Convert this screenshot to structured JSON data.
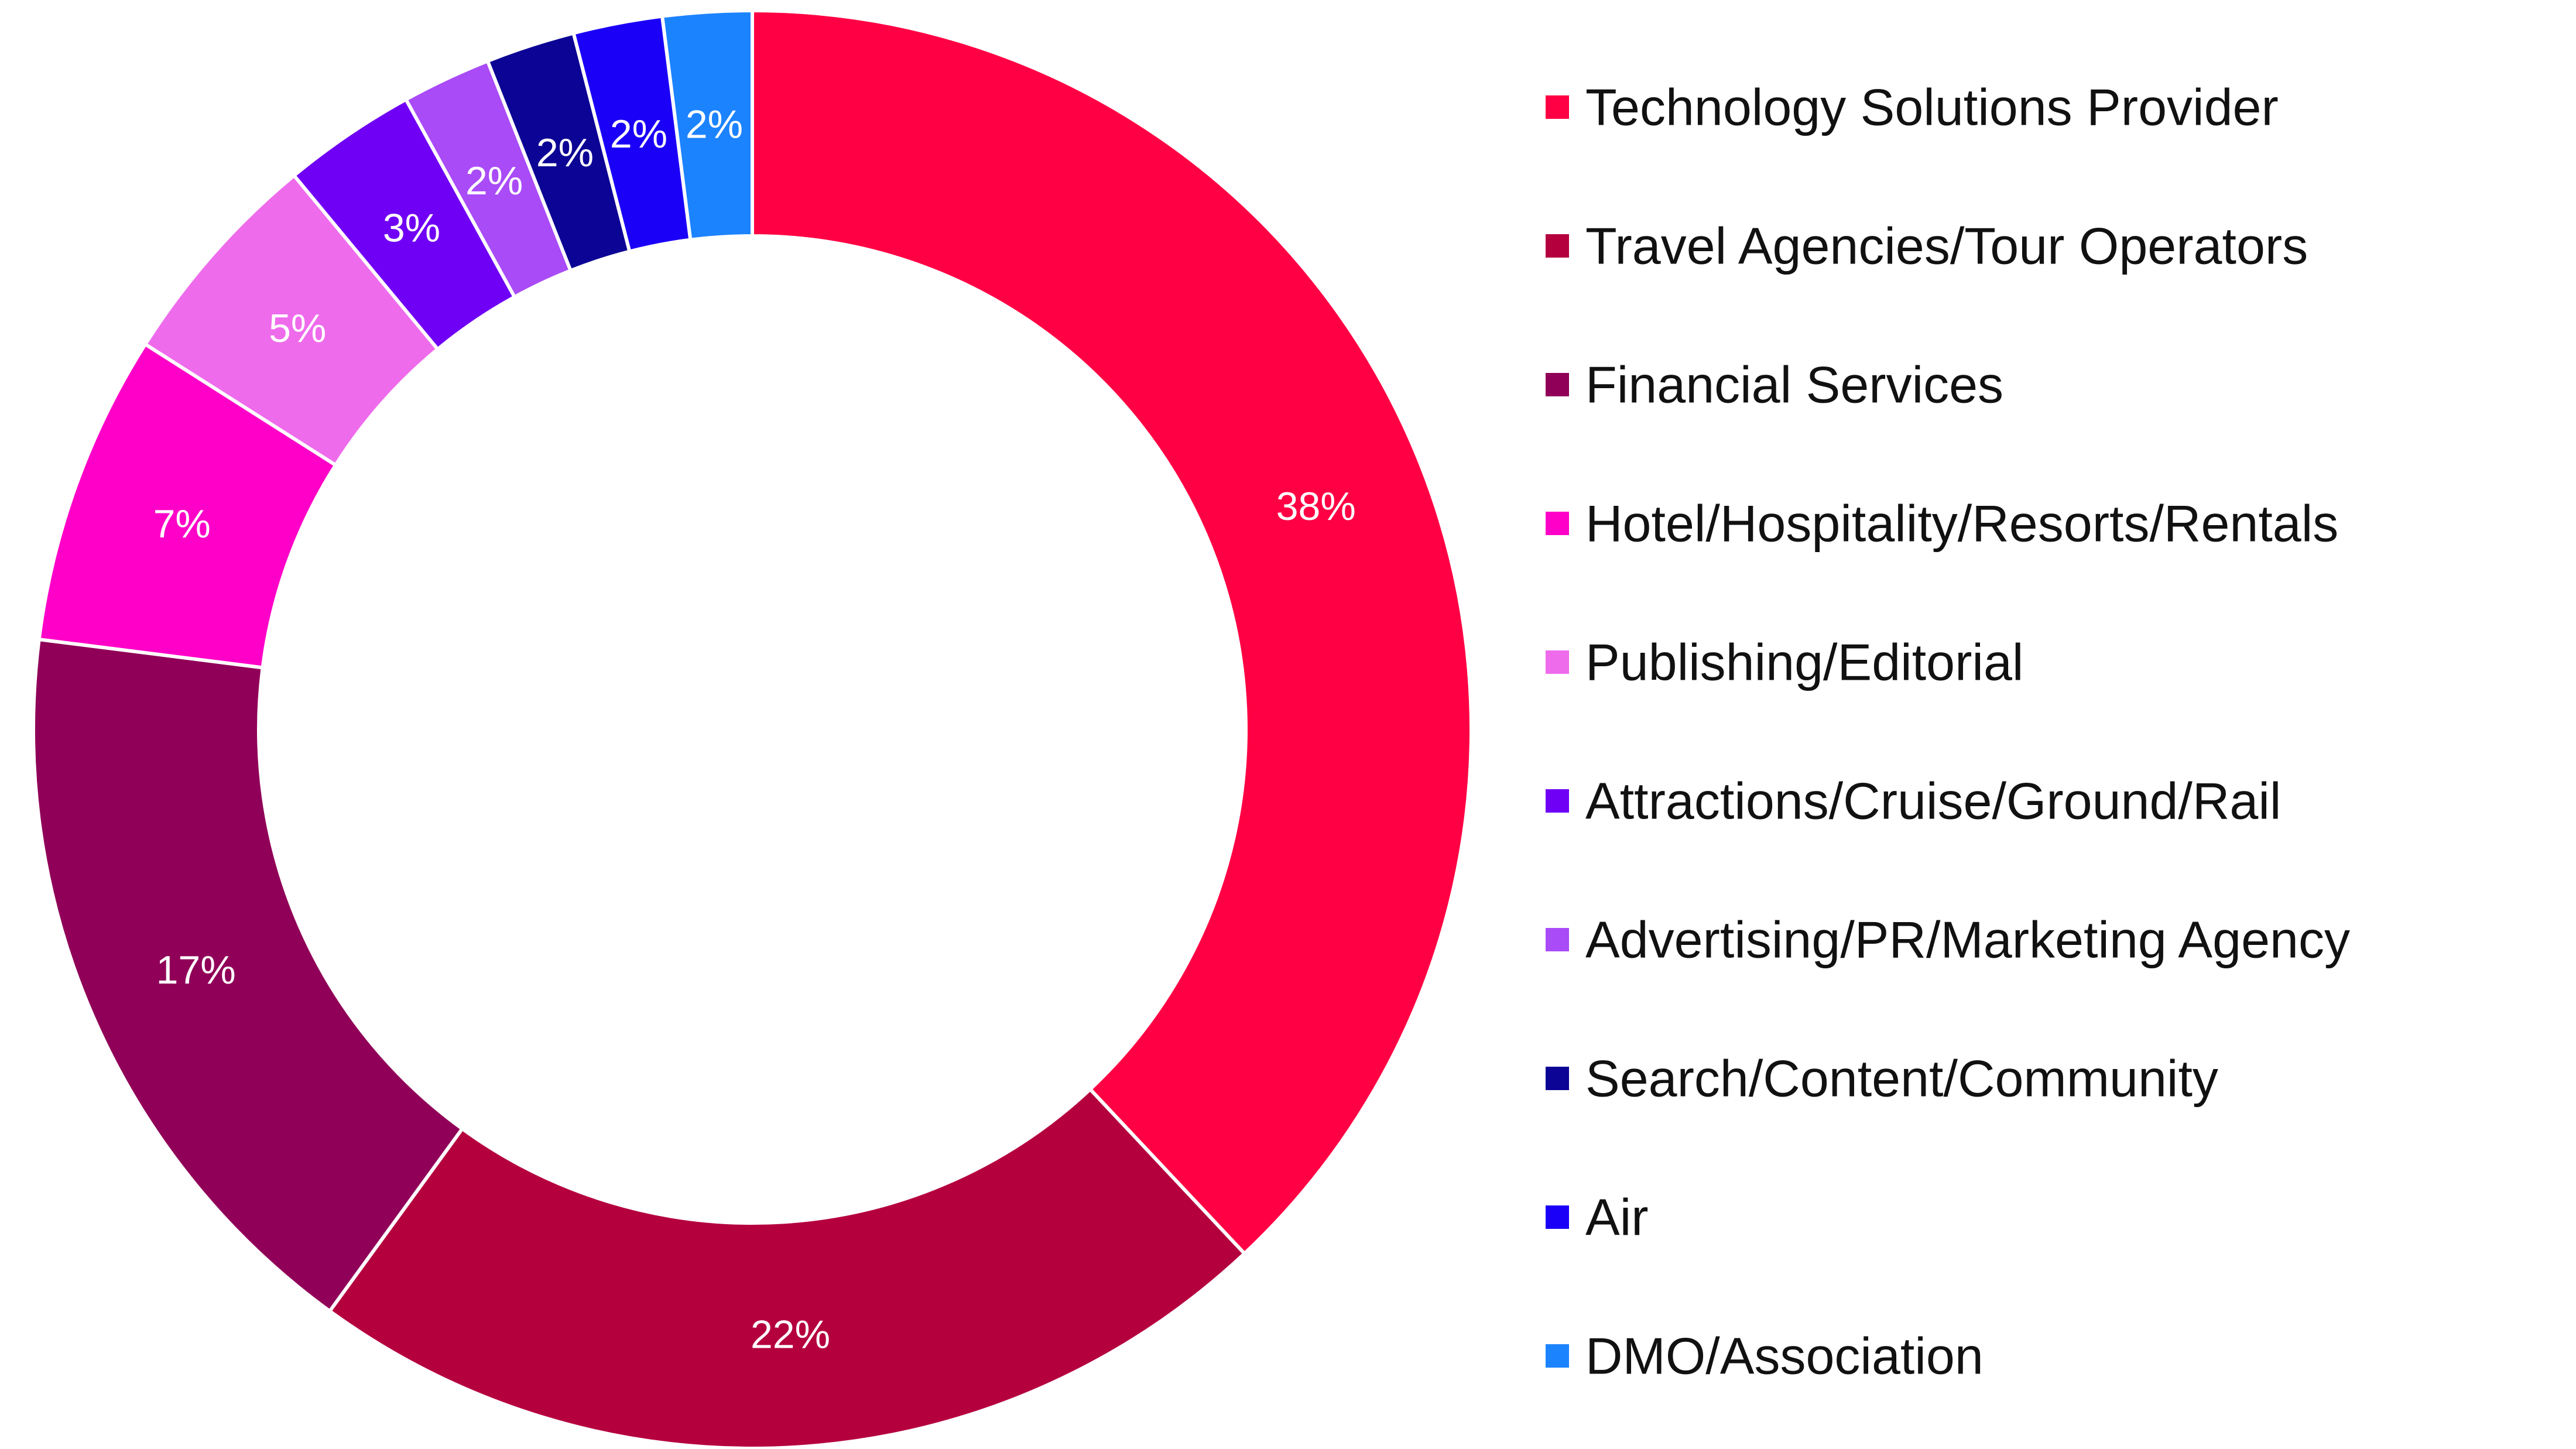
{
  "chart_data": {
    "type": "pie",
    "variant": "donut",
    "title": "",
    "legend_position": "right",
    "slices": [
      {
        "label": "Technology Solutions Provider",
        "value": 38,
        "display": "38%",
        "color": "#FF0044"
      },
      {
        "label": "Travel Agencies/Tour Operators",
        "value": 22,
        "display": "22%",
        "color": "#B5003E"
      },
      {
        "label": "Financial Services",
        "value": 17,
        "display": "17%",
        "color": "#900058"
      },
      {
        "label": "Hotel/Hospitality/Resorts/Rentals",
        "value": 7,
        "display": "7%",
        "color": "#FF00C8"
      },
      {
        "label": "Publishing/Editorial",
        "value": 5,
        "display": "5%",
        "color": "#EE6BEC"
      },
      {
        "label": "Attractions/Cruise/Ground/Rail",
        "value": 3,
        "display": "3%",
        "color": "#7000F5"
      },
      {
        "label": "Advertising/PR/Marketing Agency",
        "value": 2,
        "display": "2%",
        "color": "#A94BF7"
      },
      {
        "label": "Search/Content/Community",
        "value": 2,
        "display": "2%",
        "color": "#0C0494"
      },
      {
        "label": "Air",
        "value": 2,
        "display": "2%",
        "color": "#1A00F7"
      },
      {
        "label": "DMO/Association",
        "value": 2,
        "display": "2%",
        "color": "#1C83FF"
      }
    ]
  }
}
